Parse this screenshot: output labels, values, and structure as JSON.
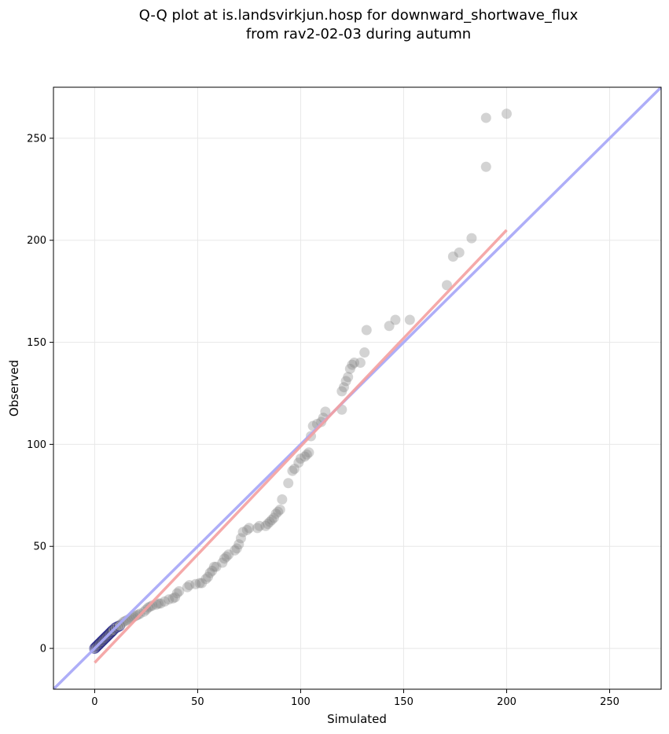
{
  "chart_data": {
    "type": "scatter",
    "title_lines": [
      "Q-Q plot at is.landsvirkjun.hosp for downward_shortwave_flux",
      "from rav2-02-03 during autumn"
    ],
    "xlabel": "Simulated",
    "ylabel": "Observed",
    "xlim": [
      -20,
      275
    ],
    "ylim": [
      -20,
      275
    ],
    "xticks": [
      0,
      50,
      100,
      150,
      200,
      250
    ],
    "yticks": [
      0,
      50,
      100,
      150,
      200,
      250
    ],
    "grid": true,
    "points": [
      [
        0,
        0
      ],
      [
        0.5,
        0.5
      ],
      [
        1,
        1
      ],
      [
        1.5,
        1.5
      ],
      [
        2,
        2
      ],
      [
        2.5,
        2.5
      ],
      [
        3,
        3
      ],
      [
        3.5,
        3.5
      ],
      [
        4,
        4
      ],
      [
        4.5,
        4.5
      ],
      [
        5,
        5
      ],
      [
        5.5,
        5.5
      ],
      [
        6,
        6
      ],
      [
        6.5,
        6.5
      ],
      [
        7,
        7
      ],
      [
        7.5,
        7.5
      ],
      [
        8,
        8
      ],
      [
        8.5,
        8.5
      ],
      [
        9,
        9
      ],
      [
        10,
        10
      ],
      [
        11,
        10.5
      ],
      [
        12,
        11
      ],
      [
        13,
        12
      ],
      [
        14,
        13
      ],
      [
        15,
        13.5
      ],
      [
        16,
        14
      ],
      [
        17,
        14.5
      ],
      [
        18,
        15
      ],
      [
        19,
        15.5
      ],
      [
        20,
        16
      ],
      [
        21,
        16.5
      ],
      [
        22,
        17
      ],
      [
        24,
        18
      ],
      [
        25,
        19
      ],
      [
        26,
        20
      ],
      [
        27,
        20.5
      ],
      [
        28,
        21
      ],
      [
        30,
        21.5
      ],
      [
        31,
        22
      ],
      [
        32,
        22
      ],
      [
        34,
        23
      ],
      [
        36,
        24
      ],
      [
        38,
        24.5
      ],
      [
        39,
        25
      ],
      [
        40,
        27
      ],
      [
        41,
        28
      ],
      [
        45,
        30
      ],
      [
        46,
        31
      ],
      [
        49,
        31.5
      ],
      [
        51,
        32
      ],
      [
        52,
        32
      ],
      [
        54,
        34
      ],
      [
        55,
        35
      ],
      [
        56,
        37
      ],
      [
        57,
        38
      ],
      [
        58,
        40
      ],
      [
        59,
        40
      ],
      [
        62,
        42
      ],
      [
        63,
        44
      ],
      [
        64,
        45
      ],
      [
        65,
        46
      ],
      [
        68,
        48
      ],
      [
        69,
        49
      ],
      [
        70,
        51
      ],
      [
        71,
        54
      ],
      [
        72,
        57
      ],
      [
        74,
        58
      ],
      [
        75,
        59
      ],
      [
        79,
        59
      ],
      [
        80,
        60
      ],
      [
        83,
        60
      ],
      [
        84,
        61
      ],
      [
        85,
        62
      ],
      [
        86,
        63
      ],
      [
        87,
        64
      ],
      [
        88,
        66
      ],
      [
        89,
        67
      ],
      [
        90,
        68
      ],
      [
        91,
        73
      ],
      [
        94,
        81
      ],
      [
        96,
        87
      ],
      [
        97,
        88
      ],
      [
        99,
        91
      ],
      [
        100,
        93
      ],
      [
        102,
        94
      ],
      [
        103,
        95
      ],
      [
        104,
        96
      ],
      [
        105,
        104
      ],
      [
        106,
        109
      ],
      [
        108,
        110
      ],
      [
        110,
        111
      ],
      [
        111,
        113
      ],
      [
        112,
        116
      ],
      [
        120,
        117
      ],
      [
        120,
        126
      ],
      [
        121,
        128
      ],
      [
        122,
        131
      ],
      [
        123,
        133
      ],
      [
        124,
        137
      ],
      [
        125,
        139
      ],
      [
        126,
        140
      ],
      [
        129,
        140
      ],
      [
        131,
        145
      ],
      [
        132,
        156
      ],
      [
        143,
        158
      ],
      [
        146,
        161
      ],
      [
        153,
        161
      ],
      [
        171,
        178
      ],
      [
        174,
        192
      ],
      [
        177,
        194
      ],
      [
        183,
        201
      ],
      [
        190,
        236
      ],
      [
        190,
        260
      ],
      [
        200,
        262
      ]
    ],
    "fit_line": {
      "x": [
        0,
        200
      ],
      "y": [
        -7,
        205
      ],
      "color": "#f4a0a0"
    },
    "identity_line": {
      "x": [
        -20,
        275
      ],
      "y": [
        -20,
        275
      ],
      "color": "#aaaaf8"
    },
    "colors": {
      "marker_fill": "#808080",
      "marker_edge_highlight": "#000080",
      "fit_line": "#f4a0a0",
      "identity_line": "#aaaaf8",
      "grid": "#e8e8e8"
    }
  }
}
